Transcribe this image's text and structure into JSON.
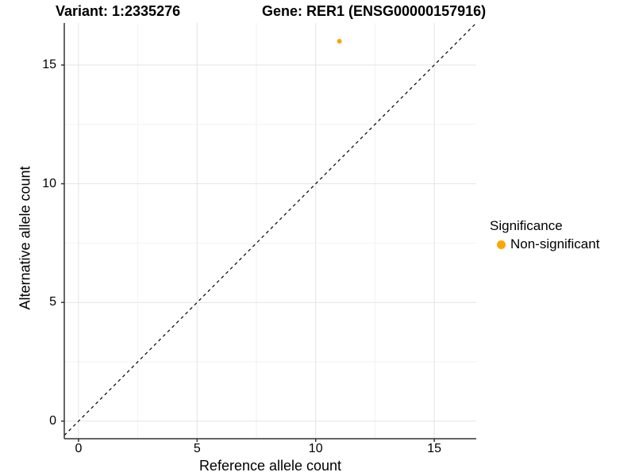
{
  "chart_data": {
    "type": "scatter",
    "title_left": "Variant: 1:2335276",
    "title_right": "Gene: RER1 (ENSG00000157916)",
    "xlabel": "Reference allele count",
    "ylabel": "Alternative allele count",
    "xlim": [
      -0.6,
      16.77
    ],
    "ylim": [
      -0.74,
      16.77
    ],
    "x_ticks": [
      0,
      5,
      10,
      15
    ],
    "y_ticks": [
      0,
      5,
      10,
      15
    ],
    "x_minor_ticks": [
      2.5,
      7.5,
      12.5
    ],
    "y_minor_ticks": [
      2.5,
      7.5,
      12.5
    ],
    "grid": true,
    "reference_line": {
      "type": "identity",
      "style": "dashed",
      "color": "#000000"
    },
    "series": [
      {
        "name": "Non-significant",
        "color": "#FFA500",
        "points": [
          {
            "x": 11,
            "y": 16
          }
        ]
      }
    ],
    "legend": {
      "title": "Significance",
      "position": "right",
      "entries": [
        {
          "label": "Non-significant",
          "color": "#FFA500"
        }
      ]
    }
  },
  "colors": {
    "background": "#FFFFFF",
    "grid_major": "#E4E4E4",
    "grid_minor": "#F2F2F2",
    "axis_line": "#333333",
    "text": "#000000",
    "point": "#FFA500",
    "dashed_line": "#000000"
  }
}
